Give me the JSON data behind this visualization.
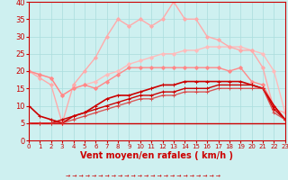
{
  "background_color": "#cef0f0",
  "grid_color": "#aadddd",
  "xlabel": "Vent moyen/en rafales ( km/h )",
  "xlabel_color": "#cc0000",
  "xlabel_fontsize": 7,
  "tick_color": "#cc0000",
  "x_ticks": [
    0,
    1,
    2,
    3,
    4,
    5,
    6,
    7,
    8,
    9,
    10,
    11,
    12,
    13,
    14,
    15,
    16,
    17,
    18,
    19,
    20,
    21,
    22,
    23
  ],
  "ylim": [
    0,
    40
  ],
  "yticks": [
    0,
    5,
    10,
    15,
    20,
    25,
    30,
    35,
    40
  ],
  "xlim": [
    0,
    23
  ],
  "curves": [
    {
      "x": [
        0,
        1,
        2,
        3,
        4,
        5,
        6,
        7,
        8,
        9,
        10,
        11,
        12,
        13,
        14,
        15,
        16,
        17,
        18,
        19,
        20,
        21,
        22,
        23
      ],
      "y": [
        20,
        19,
        18,
        13,
        15,
        16,
        17,
        19,
        20,
        22,
        23,
        24,
        25,
        25,
        26,
        26,
        27,
        27,
        27,
        27,
        26,
        25,
        20,
        8
      ],
      "color": "#ffbbbb",
      "marker": "D",
      "markersize": 2.0,
      "linewidth": 1.0,
      "alpha": 1.0
    },
    {
      "x": [
        0,
        1,
        2,
        3,
        4,
        5,
        6,
        7,
        8,
        9,
        10,
        11,
        12,
        13,
        14,
        15,
        16,
        17,
        18,
        19,
        20,
        21,
        22,
        23
      ],
      "y": [
        20,
        18,
        16,
        5,
        16,
        20,
        24,
        30,
        35,
        33,
        35,
        33,
        35,
        40,
        35,
        35,
        30,
        29,
        27,
        26,
        26,
        21,
        9,
        8
      ],
      "color": "#ffaaaa",
      "marker": "D",
      "markersize": 2.0,
      "linewidth": 1.0,
      "alpha": 1.0
    },
    {
      "x": [
        0,
        1,
        2,
        3,
        4,
        5,
        6,
        7,
        8,
        9,
        10,
        11,
        12,
        13,
        14,
        15,
        16,
        17,
        18,
        19,
        20,
        21,
        22,
        23
      ],
      "y": [
        20,
        19,
        18,
        13,
        15,
        16,
        15,
        17,
        19,
        21,
        21,
        21,
        21,
        21,
        21,
        21,
        21,
        21,
        20,
        21,
        17,
        16,
        10,
        6
      ],
      "color": "#ff8888",
      "marker": "D",
      "markersize": 2.0,
      "linewidth": 1.0,
      "alpha": 1.0
    },
    {
      "x": [
        0,
        1,
        2,
        3,
        4,
        5,
        6,
        7,
        8,
        9,
        10,
        11,
        12,
        13,
        14,
        15,
        16,
        17,
        18,
        19,
        20,
        21,
        22,
        23
      ],
      "y": [
        10,
        7,
        6,
        5,
        7,
        8,
        10,
        12,
        13,
        13,
        14,
        15,
        16,
        16,
        17,
        17,
        17,
        17,
        17,
        17,
        16,
        15,
        10,
        6
      ],
      "color": "#cc0000",
      "marker": "+",
      "markersize": 3.5,
      "linewidth": 1.2,
      "alpha": 1.0
    },
    {
      "x": [
        0,
        1,
        2,
        3,
        4,
        5,
        6,
        7,
        8,
        9,
        10,
        11,
        12,
        13,
        14,
        15,
        16,
        17,
        18,
        19,
        20,
        21,
        22,
        23
      ],
      "y": [
        5,
        5,
        5,
        5,
        5,
        5,
        5,
        5,
        5,
        5,
        5,
        5,
        5,
        5,
        5,
        5,
        5,
        5,
        5,
        5,
        5,
        5,
        5,
        5
      ],
      "color": "#cc0000",
      "marker": null,
      "markersize": 0,
      "linewidth": 1.0,
      "alpha": 1.0
    },
    {
      "x": [
        0,
        1,
        2,
        3,
        4,
        5,
        6,
        7,
        8,
        9,
        10,
        11,
        12,
        13,
        14,
        15,
        16,
        17,
        18,
        19,
        20,
        21,
        22,
        23
      ],
      "y": [
        5,
        5,
        5,
        6,
        7,
        8,
        9,
        10,
        11,
        12,
        13,
        13,
        14,
        14,
        15,
        15,
        15,
        16,
        16,
        16,
        16,
        15,
        9,
        6
      ],
      "color": "#cc0000",
      "marker": "+",
      "markersize": 3.0,
      "linewidth": 1.0,
      "alpha": 1.0
    },
    {
      "x": [
        0,
        1,
        2,
        3,
        4,
        5,
        6,
        7,
        8,
        9,
        10,
        11,
        12,
        13,
        14,
        15,
        16,
        17,
        18,
        19,
        20,
        21,
        22,
        23
      ],
      "y": [
        5,
        5,
        5,
        5,
        6,
        7,
        8,
        9,
        10,
        11,
        12,
        12,
        13,
        13,
        14,
        14,
        14,
        15,
        15,
        15,
        15,
        15,
        8,
        6
      ],
      "color": "#dd3333",
      "marker": "+",
      "markersize": 3.0,
      "linewidth": 1.0,
      "alpha": 0.8
    }
  ],
  "arrow_color": "#cc0000"
}
